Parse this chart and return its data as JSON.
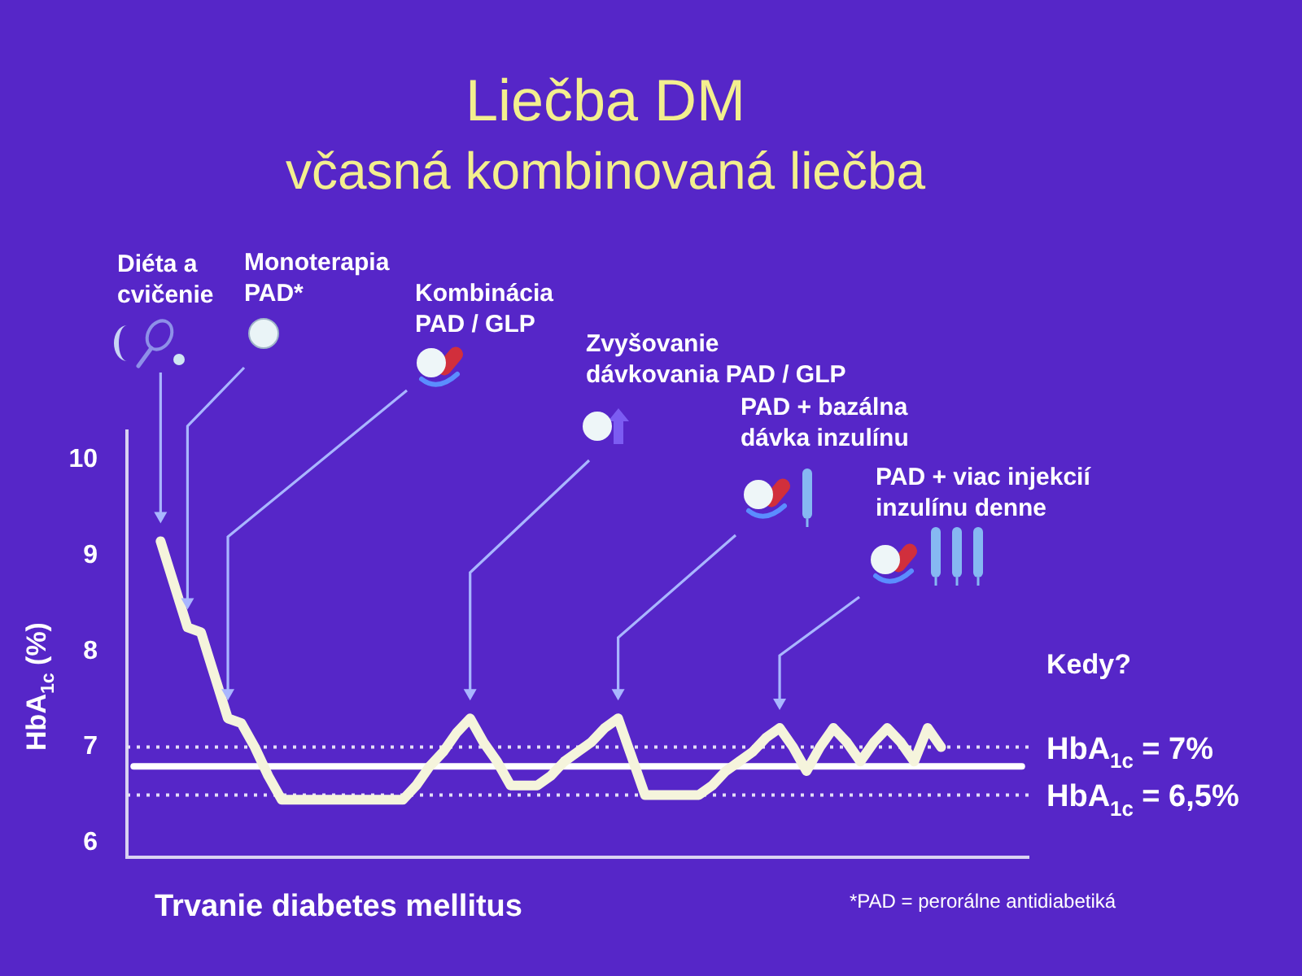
{
  "chart_data": {
    "type": "line",
    "title": "Liečba DM",
    "subtitle": "včasná kombinovaná liečba",
    "xlabel": "Trvanie diabetes mellitus",
    "ylabel": "HbA$_{1c}$ (%)",
    "categories": [
      null,
      null,
      null,
      null,
      null,
      null,
      null,
      null,
      null,
      null,
      null,
      null,
      null,
      null,
      null,
      null,
      null,
      null,
      null,
      null,
      null,
      null,
      null,
      null,
      null,
      null,
      null,
      null,
      null,
      null,
      null,
      null,
      null,
      null,
      null,
      null,
      null,
      null,
      null,
      null,
      null,
      null,
      null,
      null,
      null,
      null,
      null,
      null,
      null,
      null,
      null,
      null,
      null,
      null,
      null,
      null,
      null,
      null,
      null,
      null,
      null,
      null,
      null,
      null,
      null,
      null,
      null
    ],
    "series": [
      {
        "color": "#f5f4dc",
        "values": [
          null,
          null,
          9.15,
          8.7,
          8.25,
          8.2,
          7.75,
          7.3,
          7.25,
          7.0,
          6.7,
          6.45,
          6.45,
          6.45,
          6.45,
          6.45,
          6.45,
          6.45,
          6.45,
          6.45,
          6.45,
          6.6,
          6.8,
          6.95,
          7.15,
          7.3,
          7.05,
          6.85,
          6.6,
          6.6,
          6.6,
          6.7,
          6.85,
          6.95,
          7.05,
          7.2,
          7.3,
          6.9,
          6.5,
          6.5,
          6.5,
          6.5,
          6.5,
          6.6,
          6.75,
          6.85,
          6.95,
          7.1,
          7.2,
          7.0,
          6.75,
          7.0,
          7.2,
          7.05,
          6.85,
          7.05,
          7.2,
          7.05,
          6.85,
          7.2,
          7.0,
          null,
          null,
          null,
          null,
          null,
          null
        ]
      },
      {
        "color": "#ffffff",
        "values": [
          6.8,
          6.8,
          6.8,
          6.8,
          6.8,
          6.8,
          6.8,
          6.8,
          6.8,
          6.8,
          6.8,
          6.8,
          6.8,
          6.8,
          6.8,
          6.8,
          6.8,
          6.8,
          6.8,
          6.8,
          6.8,
          6.8,
          6.8,
          6.8,
          6.8,
          6.8,
          6.8,
          6.8,
          6.8,
          6.8,
          6.8,
          6.8,
          6.8,
          6.8,
          6.8,
          6.8,
          6.8,
          6.8,
          6.8,
          6.8,
          6.8,
          6.8,
          6.8,
          6.8,
          6.8,
          6.8,
          6.8,
          6.8,
          6.8,
          6.8,
          6.8,
          6.8,
          6.8,
          6.8,
          6.8,
          6.8,
          6.8,
          6.8,
          6.8,
          6.8,
          6.8,
          6.8,
          6.8,
          6.8,
          6.8,
          6.8,
          6.8
        ]
      }
    ],
    "ylim": [
      5.85,
      10.3
    ],
    "yticks": [
      6,
      7,
      8,
      9,
      10
    ],
    "tick_labels": "y",
    "ref_lines": [
      {
        "axis": "y",
        "value": 7,
        "label": "HbA$_{1c}$ = 7%",
        "color": "#e4def8",
        "line_style": "dotted"
      },
      {
        "axis": "y",
        "value": 6.5,
        "label": "HbA$_{1c}$ = 6,5%",
        "color": "#e4def8",
        "line_style": "dotted"
      }
    ],
    "annotations": [
      "Diéta a cvičenie",
      "Monoterapia PAD*",
      "Kombinácia PAD / GLP",
      "Zvyšovanie dávkovania PAD / GLP",
      "PAD + bazálna dávka inzulínu",
      "PAD + viac injekcií inzulínu denne",
      "Kedy?",
      "*PAD = perorálne antidiabetiká"
    ]
  }
}
